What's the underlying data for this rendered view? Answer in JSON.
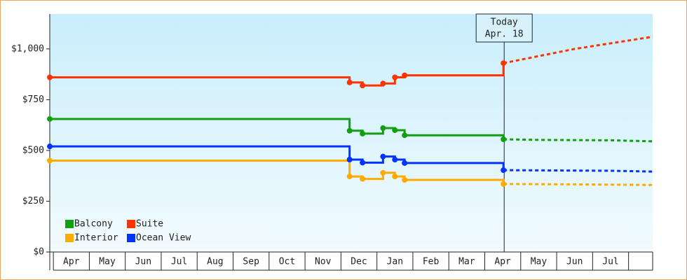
{
  "chart_data": {
    "type": "step-line",
    "categories": [
      "Apr",
      "May",
      "Jun",
      "Jul",
      "Aug",
      "Sep",
      "Oct",
      "Nov",
      "Dec",
      "Jan",
      "Feb",
      "Mar",
      "Apr",
      "May",
      "Jun",
      "Jul",
      null
    ],
    "xlim": [
      -0.1,
      16.67
    ],
    "ylim": [
      0,
      1172
    ],
    "yticks": [
      {
        "value": 0,
        "label": "$0"
      },
      {
        "value": 250,
        "label": "$250"
      },
      {
        "value": 500,
        "label": "$500"
      },
      {
        "value": 750,
        "label": "$750"
      },
      {
        "value": 1000,
        "label": "$1,000"
      }
    ],
    "annotation": {
      "x": 12.54,
      "title": "Today",
      "date": "Apr. 18"
    },
    "legend": "bottom-left",
    "series": [
      {
        "name": "Balcony",
        "color": "#11a011",
        "x": [
          -0.1,
          8.24,
          8.6,
          9.17,
          9.5,
          9.77,
          12.52
        ],
        "values": [
          655,
          597,
          583,
          610,
          600,
          575,
          555
        ],
        "forecast": {
          "x": [
            12.52,
            13.55,
            15.55,
            16.67
          ],
          "values": [
            555,
            552,
            550,
            545
          ]
        }
      },
      {
        "name": "Suite",
        "color": "#ff3300",
        "x": [
          -0.1,
          8.24,
          8.6,
          9.17,
          9.5,
          9.77,
          12.52
        ],
        "values": [
          860,
          835,
          820,
          830,
          860,
          870,
          930
        ],
        "forecast": {
          "x": [
            12.52,
            14.5,
            16.67
          ],
          "values": [
            930,
            1000,
            1060
          ]
        }
      },
      {
        "name": "Interior",
        "color": "#ffaa00",
        "x": [
          -0.1,
          8.24,
          8.6,
          9.17,
          9.5,
          9.77,
          12.52
        ],
        "values": [
          450,
          372,
          360,
          390,
          372,
          355,
          335
        ],
        "forecast": {
          "x": [
            12.52,
            14.5,
            16.67
          ],
          "values": [
            335,
            333,
            330
          ]
        }
      },
      {
        "name": "Ocean View",
        "color": "#0033ff",
        "x": [
          -0.1,
          8.24,
          8.6,
          9.17,
          9.5,
          9.77,
          12.52
        ],
        "values": [
          520,
          455,
          440,
          470,
          455,
          438,
          403
        ],
        "forecast": {
          "x": [
            12.52,
            15.55,
            16.67
          ],
          "values": [
            403,
            400,
            396
          ]
        }
      }
    ]
  }
}
